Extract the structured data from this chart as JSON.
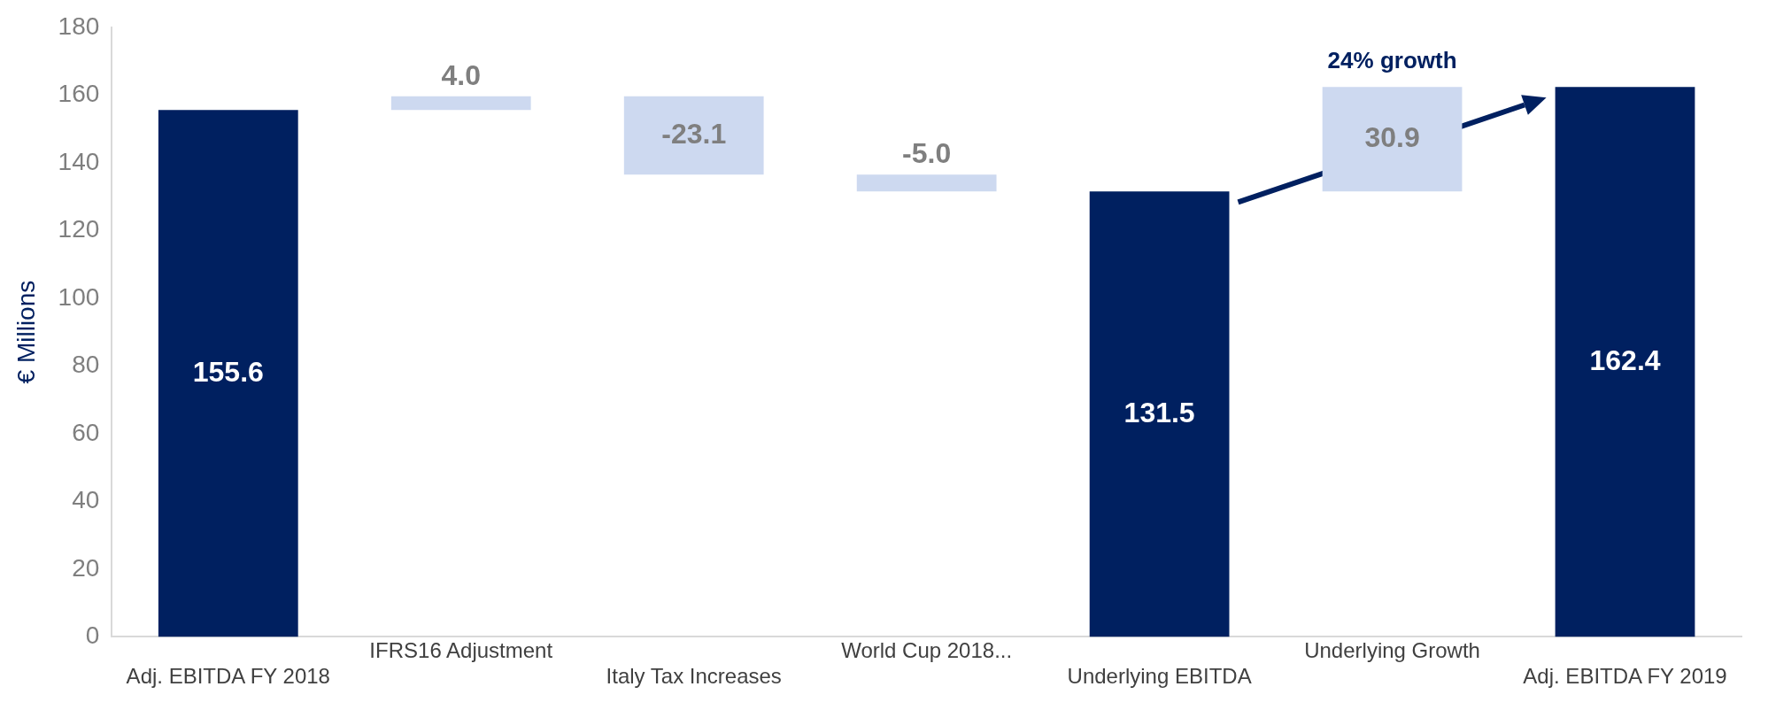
{
  "chart_data": {
    "type": "bar",
    "ylabel": "€ Millions",
    "categories": [
      "Adj. EBITDA FY 2018",
      "IFRS16 Adjustment",
      "Italy Tax Increases",
      "World Cup 2018...",
      "Underlying EBITDA",
      "Underlying Growth",
      "Adj. EBITDA FY 2019"
    ],
    "values": [
      155.6,
      4.0,
      -23.1,
      -5.0,
      131.5,
      30.9,
      162.4
    ],
    "base": [
      0,
      155.6,
      159.6,
      136.5,
      0,
      131.5,
      0
    ],
    "colors": [
      "#002060",
      "#cdd9f0",
      "#cdd9f0",
      "#cdd9f0",
      "#002060",
      "#cdd9f0",
      "#002060"
    ],
    "value_labels": [
      "155.6",
      "4.0",
      "-23.1",
      "-5.0",
      "131.5",
      "30.9",
      "162.4"
    ],
    "annotations": [
      "24% growth"
    ],
    "ylim": [
      0,
      180
    ],
    "yticks": [
      0,
      20,
      40,
      60,
      80,
      100,
      120,
      140,
      160,
      180
    ],
    "grid": false
  }
}
